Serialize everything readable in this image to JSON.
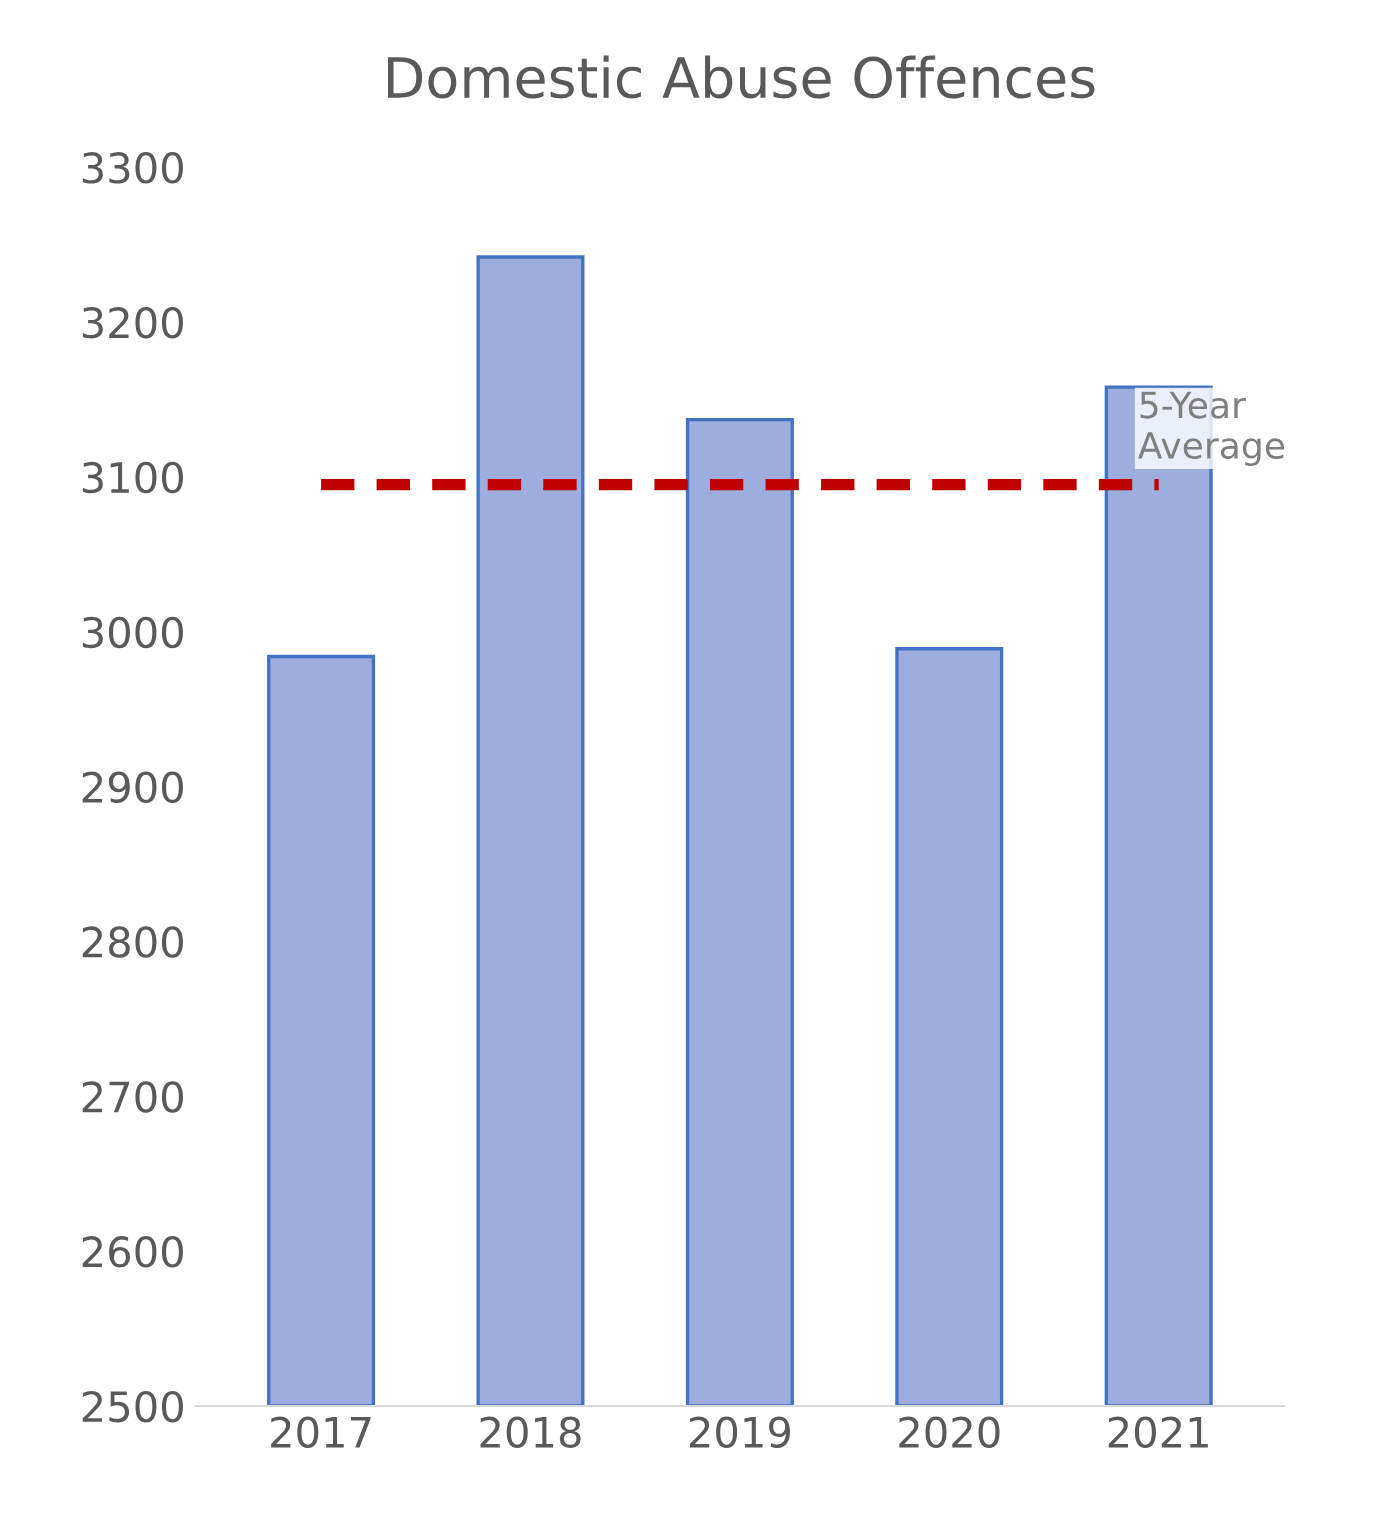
{
  "chart_data": {
    "type": "bar",
    "title": "Domestic Abuse Offences",
    "categories": [
      "2017",
      "2018",
      "2019",
      "2020",
      "2021"
    ],
    "series": [
      {
        "color": "#9dadde",
        "values": [
          2984,
          3242,
          3137,
          2989,
          3158
        ]
      },
      {
        "type": "line",
        "name": "5-Year Average",
        "color": "#c00000",
        "line_style": "dashed",
        "values": [
          3095,
          3095,
          3095,
          3095,
          3095
        ]
      }
    ],
    "ylim": [
      2500,
      3300
    ],
    "yticks": [
      2500,
      2600,
      2700,
      2800,
      2900,
      3000,
      3100,
      3200,
      3300
    ],
    "grid": false,
    "legend": false
  }
}
